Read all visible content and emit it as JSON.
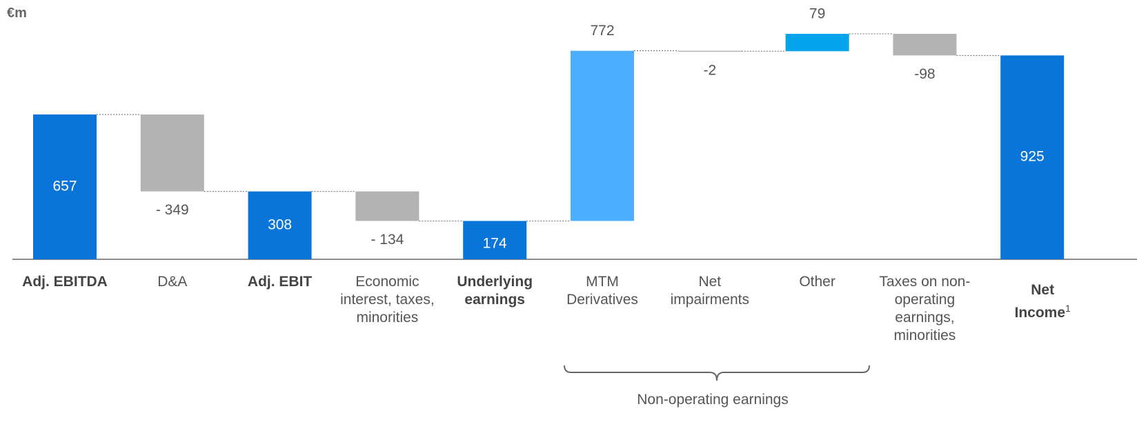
{
  "chart_data": {
    "type": "waterfall",
    "unit": "€m",
    "categories": [
      "Adj. EBITDA",
      "D&A",
      "Adj. EBIT",
      "Economic interest, taxes, minorities",
      "Underlying earnings",
      "MTM Derivatives",
      "Net impairments",
      "Other",
      "Taxes on non-operating earnings, minorities",
      "Net Income"
    ],
    "measure": [
      "total",
      "relative",
      "total",
      "relative",
      "total",
      "relative",
      "relative",
      "relative",
      "relative",
      "total"
    ],
    "values": [
      657,
      -349,
      308,
      -134,
      174,
      772,
      -2,
      79,
      -98,
      925
    ],
    "value_labels": [
      "657",
      "- 349",
      "308",
      "- 134",
      "174",
      "772",
      "-2",
      "79",
      "-98",
      "925"
    ],
    "colors": [
      "#0a75d9",
      "#b3b3b3",
      "#0a75d9",
      "#b3b3b3",
      "#0a75d9",
      "#4dadff",
      "#b3b3b3",
      "#04a3ec",
      "#b3b3b3",
      "#0a75d9"
    ],
    "last_category_superscript": "1",
    "group_label": "Non-operating earnings"
  }
}
